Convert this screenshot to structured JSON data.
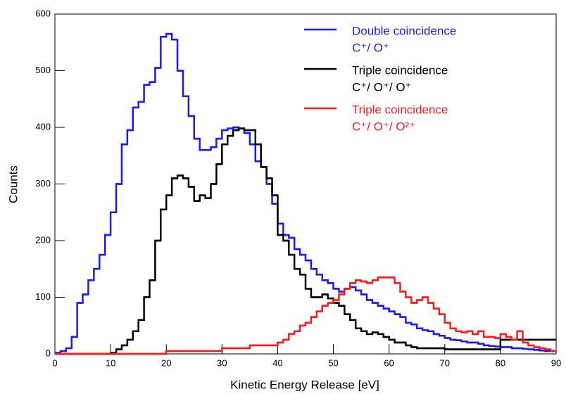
{
  "chart_data": {
    "type": "histogram",
    "xlabel": "Kinetic Energy Release [eV]",
    "ylabel": "Counts",
    "xlim": [
      0,
      90
    ],
    "ylim": [
      0,
      600
    ],
    "xticks": [
      0,
      10,
      20,
      30,
      40,
      50,
      60,
      70,
      80,
      90
    ],
    "yticks": [
      0,
      100,
      200,
      300,
      400,
      500,
      600
    ],
    "bins": [
      0,
      1,
      2,
      3,
      4,
      5,
      6,
      7,
      8,
      9,
      10,
      11,
      12,
      13,
      14,
      15,
      16,
      17,
      18,
      19,
      20,
      21,
      22,
      23,
      24,
      25,
      26,
      27,
      28,
      29,
      30,
      31,
      32,
      33,
      34,
      35,
      36,
      37,
      38,
      39,
      40,
      41,
      42,
      43,
      44,
      45,
      46,
      47,
      48,
      49,
      50,
      51,
      52,
      53,
      54,
      55,
      56,
      57,
      58,
      59,
      60,
      61,
      62,
      63,
      64,
      65,
      66,
      67,
      68,
      69,
      70,
      71,
      72,
      73,
      74,
      75,
      76,
      77,
      78,
      79,
      80,
      81,
      82,
      83,
      84,
      85,
      86,
      87,
      88,
      89,
      90
    ],
    "legend": "upper right",
    "series": [
      {
        "name": "Double coincidence",
        "formula": "C⁺/ O⁺",
        "color": "#1a1aff",
        "values": [
          2,
          5,
          10,
          30,
          90,
          105,
          130,
          150,
          175,
          210,
          250,
          300,
          370,
          395,
          435,
          445,
          475,
          480,
          505,
          560,
          565,
          555,
          500,
          455,
          420,
          380,
          360,
          360,
          365,
          380,
          395,
          398,
          400,
          398,
          390,
          370,
          340,
          330,
          300,
          265,
          230,
          210,
          205,
          185,
          175,
          165,
          150,
          140,
          130,
          125,
          115,
          110,
          115,
          118,
          112,
          105,
          95,
          90,
          85,
          80,
          75,
          70,
          65,
          55,
          52,
          45,
          42,
          40,
          35,
          32,
          28,
          25,
          24,
          22,
          20,
          20,
          18,
          15,
          14,
          13,
          12,
          12,
          10,
          10,
          9,
          8,
          7,
          6,
          5,
          5
        ]
      },
      {
        "name": "Triple coincidence",
        "formula": "C⁺/ O⁺/ O⁺",
        "color": "#000000",
        "values": [
          0,
          0,
          0,
          0,
          0,
          0,
          0,
          0,
          0,
          0,
          2,
          8,
          15,
          25,
          40,
          60,
          100,
          130,
          200,
          255,
          280,
          310,
          315,
          310,
          295,
          270,
          280,
          275,
          300,
          335,
          370,
          385,
          395,
          398,
          395,
          395,
          370,
          330,
          310,
          280,
          210,
          200,
          175,
          150,
          140,
          115,
          100,
          100,
          105,
          98,
          90,
          85,
          70,
          60,
          45,
          40,
          35,
          38,
          35,
          30,
          25,
          20,
          20,
          15,
          12,
          10,
          10,
          10,
          10,
          10,
          8,
          8,
          8,
          8,
          8,
          8,
          8,
          8,
          8,
          8,
          25,
          25,
          25,
          25,
          25,
          25,
          25,
          25,
          25,
          25
        ]
      },
      {
        "name": "Triple coincidence",
        "formula": "C⁺/ O⁺/ O²⁺",
        "color": "#ff1a1a",
        "values": [
          0,
          0,
          0,
          0,
          0,
          0,
          0,
          0,
          0,
          0,
          0,
          0,
          0,
          0,
          0,
          0,
          0,
          0,
          0,
          0,
          5,
          5,
          5,
          5,
          5,
          5,
          5,
          5,
          5,
          5,
          10,
          10,
          10,
          10,
          10,
          15,
          15,
          15,
          15,
          15,
          20,
          25,
          35,
          40,
          50,
          55,
          65,
          75,
          85,
          90,
          95,
          105,
          115,
          125,
          130,
          128,
          125,
          130,
          135,
          135,
          135,
          125,
          110,
          100,
          90,
          95,
          100,
          90,
          80,
          70,
          55,
          45,
          40,
          38,
          40,
          35,
          40,
          30,
          30,
          28,
          35,
          30,
          25,
          40,
          20,
          15,
          12,
          10,
          8,
          5
        ]
      }
    ]
  }
}
